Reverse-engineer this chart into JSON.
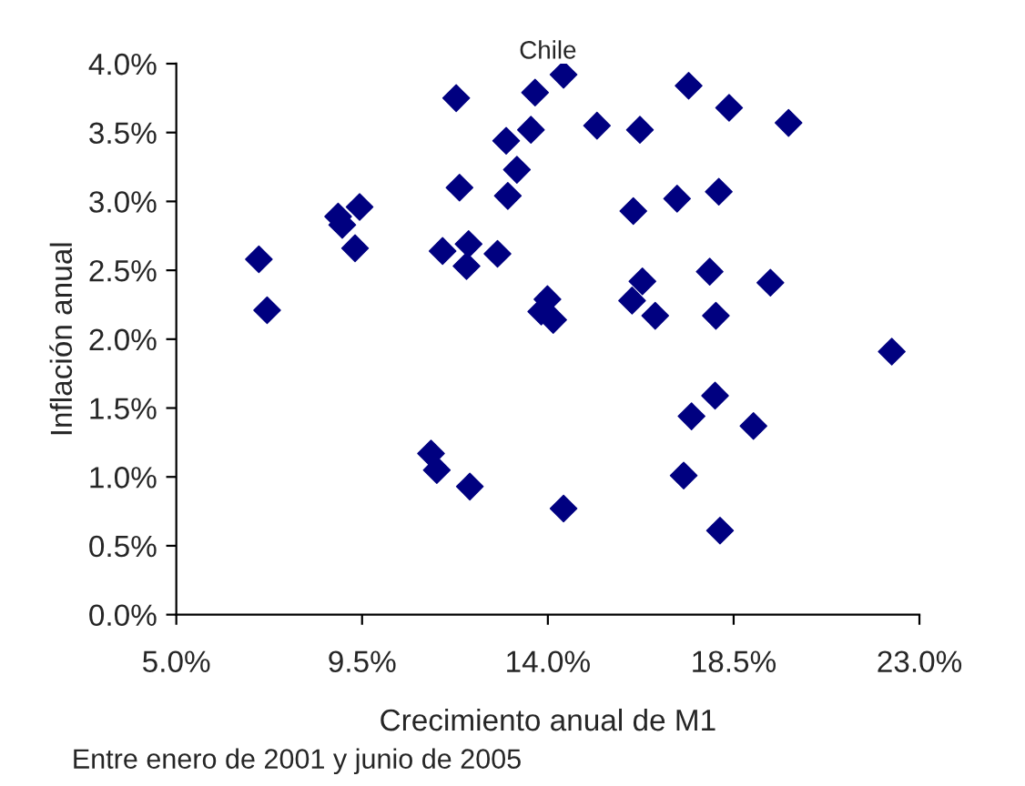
{
  "chart_data": {
    "type": "scatter",
    "title": "Chile",
    "xlabel": "Crecimiento anual de M1",
    "ylabel": "Inflación anual",
    "annotations": [
      "Entre enero de 2001 y junio de 2005"
    ],
    "series": [
      {
        "color": "#000080",
        "x": [
          7.0,
          7.2,
          8.92,
          9.02,
          9.44,
          9.33,
          11.78,
          11.86,
          11.45,
          12.08,
          12.03,
          12.78,
          12.99,
          13.25,
          13.03,
          13.59,
          13.69,
          11.17,
          11.31,
          12.11,
          14.38,
          17.41,
          18.39,
          19.83,
          15.19,
          16.23,
          16.07,
          17.13,
          18.14,
          17.92,
          19.39,
          16.29,
          16.04,
          16.6,
          18.07,
          13.99,
          13.84,
          14.13,
          22.33,
          18.05,
          17.48,
          18.98,
          17.29,
          14.38,
          18.17
        ],
        "values": [
          2.58,
          2.21,
          2.89,
          2.83,
          2.96,
          2.66,
          3.75,
          3.1,
          2.64,
          2.69,
          2.53,
          2.62,
          3.44,
          3.23,
          3.04,
          3.52,
          3.79,
          1.17,
          1.05,
          0.93,
          3.92,
          3.84,
          3.68,
          3.57,
          3.55,
          3.52,
          2.93,
          3.02,
          3.07,
          2.49,
          2.41,
          2.42,
          2.28,
          2.17,
          2.17,
          2.29,
          2.2,
          2.14,
          1.91,
          1.59,
          1.44,
          1.37,
          1.01,
          0.77,
          0.61
        ]
      }
    ],
    "marker": "diamond",
    "grid": false,
    "xlim": [
      5.0,
      23.0
    ],
    "xticks": [
      {
        "value": 5.0,
        "label": "5.0%"
      },
      {
        "value": 9.5,
        "label": "9.5%"
      },
      {
        "value": 14.0,
        "label": "14.0%"
      },
      {
        "value": 18.5,
        "label": "18.5%"
      },
      {
        "value": 23.0,
        "label": "23.0%"
      }
    ],
    "ylim": [
      0.0,
      4.0
    ],
    "yticks": [
      {
        "value": 0.0,
        "label": "0.0%"
      },
      {
        "value": 0.5,
        "label": "0.5%"
      },
      {
        "value": 1.0,
        "label": "1.0%"
      },
      {
        "value": 1.5,
        "label": "1.5%"
      },
      {
        "value": 2.0,
        "label": "2.0%"
      },
      {
        "value": 2.5,
        "label": "2.5%"
      },
      {
        "value": 3.0,
        "label": "3.0%"
      },
      {
        "value": 3.5,
        "label": "3.5%"
      },
      {
        "value": 4.0,
        "label": "4.0%"
      }
    ]
  }
}
